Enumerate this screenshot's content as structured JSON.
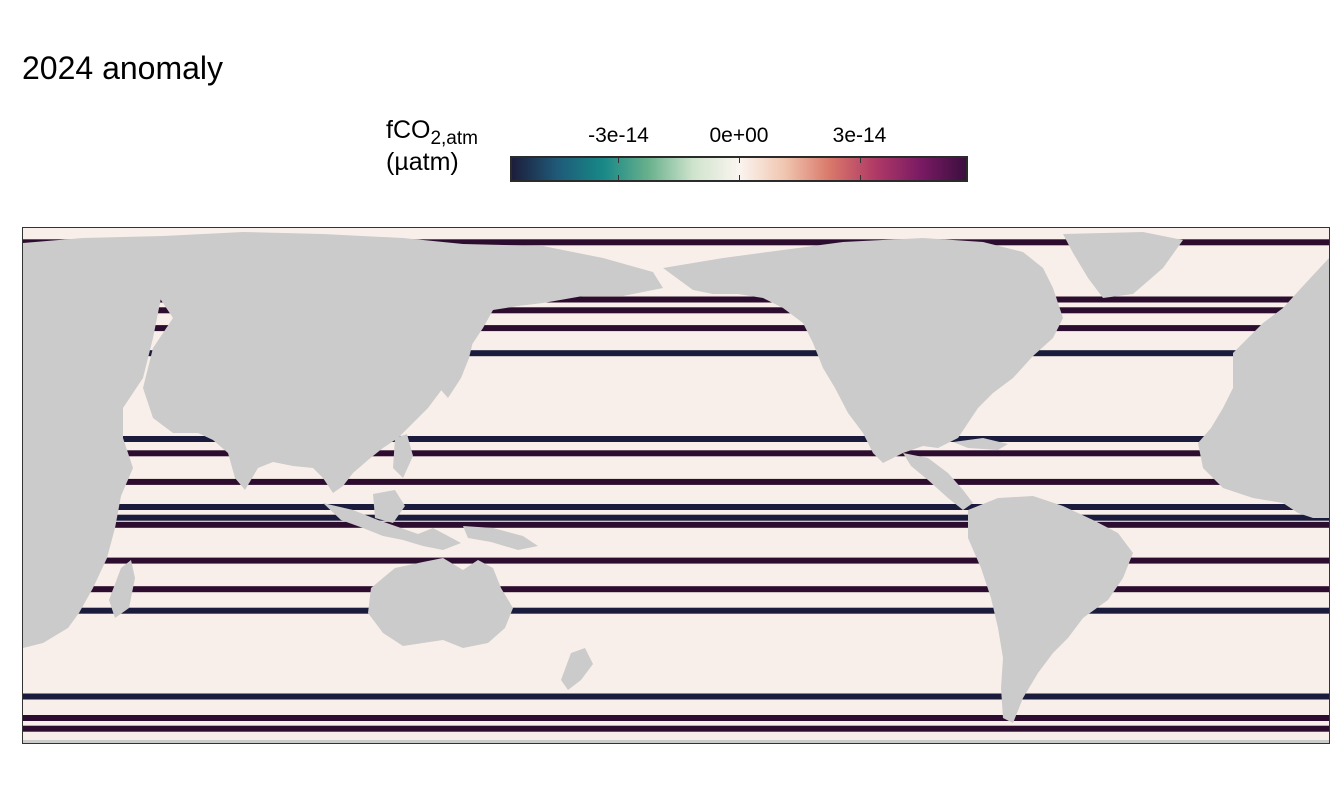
{
  "title": "2024 anomaly",
  "legend": {
    "title_main": "fCO",
    "title_sub": "2,atm",
    "title_unit": "(µatm)",
    "ticks": [
      "-3e-14",
      "0e+00",
      "3e-14"
    ],
    "tick_values": [
      -3e-14,
      0,
      3e-14
    ],
    "range": [
      -5.7e-14,
      5.7e-14
    ],
    "palette": [
      "#1c1e3c",
      "#1f5a78",
      "#178887",
      "#68b08c",
      "#cfe4cc",
      "#fbf5f0",
      "#f0c6b0",
      "#d9786a",
      "#b03a66",
      "#7a1a64",
      "#3c0f3f"
    ]
  },
  "map": {
    "projection": "Pacific-centred equirectangular",
    "ocean_value": 0,
    "colors": {
      "ocean": "#f9efea",
      "land": "#cbcbcb",
      "anomaly_dark": "#2d0d2f",
      "anomaly_navy": "#1b1c3d"
    },
    "anomaly_bands": [
      {
        "lat": 80,
        "value": 5.7e-14
      },
      {
        "lat": 64,
        "value": 5.7e-14
      },
      {
        "lat": 61,
        "value": 5.7e-14
      },
      {
        "lat": 56,
        "value": 5.7e-14
      },
      {
        "lat": 49,
        "value": -5.7e-14
      },
      {
        "lat": 25,
        "value": -5.7e-14
      },
      {
        "lat": 21,
        "value": 5.7e-14
      },
      {
        "lat": 13,
        "value": 5.7e-14
      },
      {
        "lat": 6,
        "value": -5.7e-14
      },
      {
        "lat": 3,
        "value": -5.7e-14
      },
      {
        "lat": 1,
        "value": 5.7e-14
      },
      {
        "lat": -9,
        "value": 5.7e-14
      },
      {
        "lat": -17,
        "value": 5.7e-14
      },
      {
        "lat": -23,
        "value": -5.7e-14
      },
      {
        "lat": -47,
        "value": -5.7e-14
      },
      {
        "lat": -53,
        "value": 5.7e-14
      },
      {
        "lat": -56,
        "value": 5.7e-14
      }
    ]
  }
}
